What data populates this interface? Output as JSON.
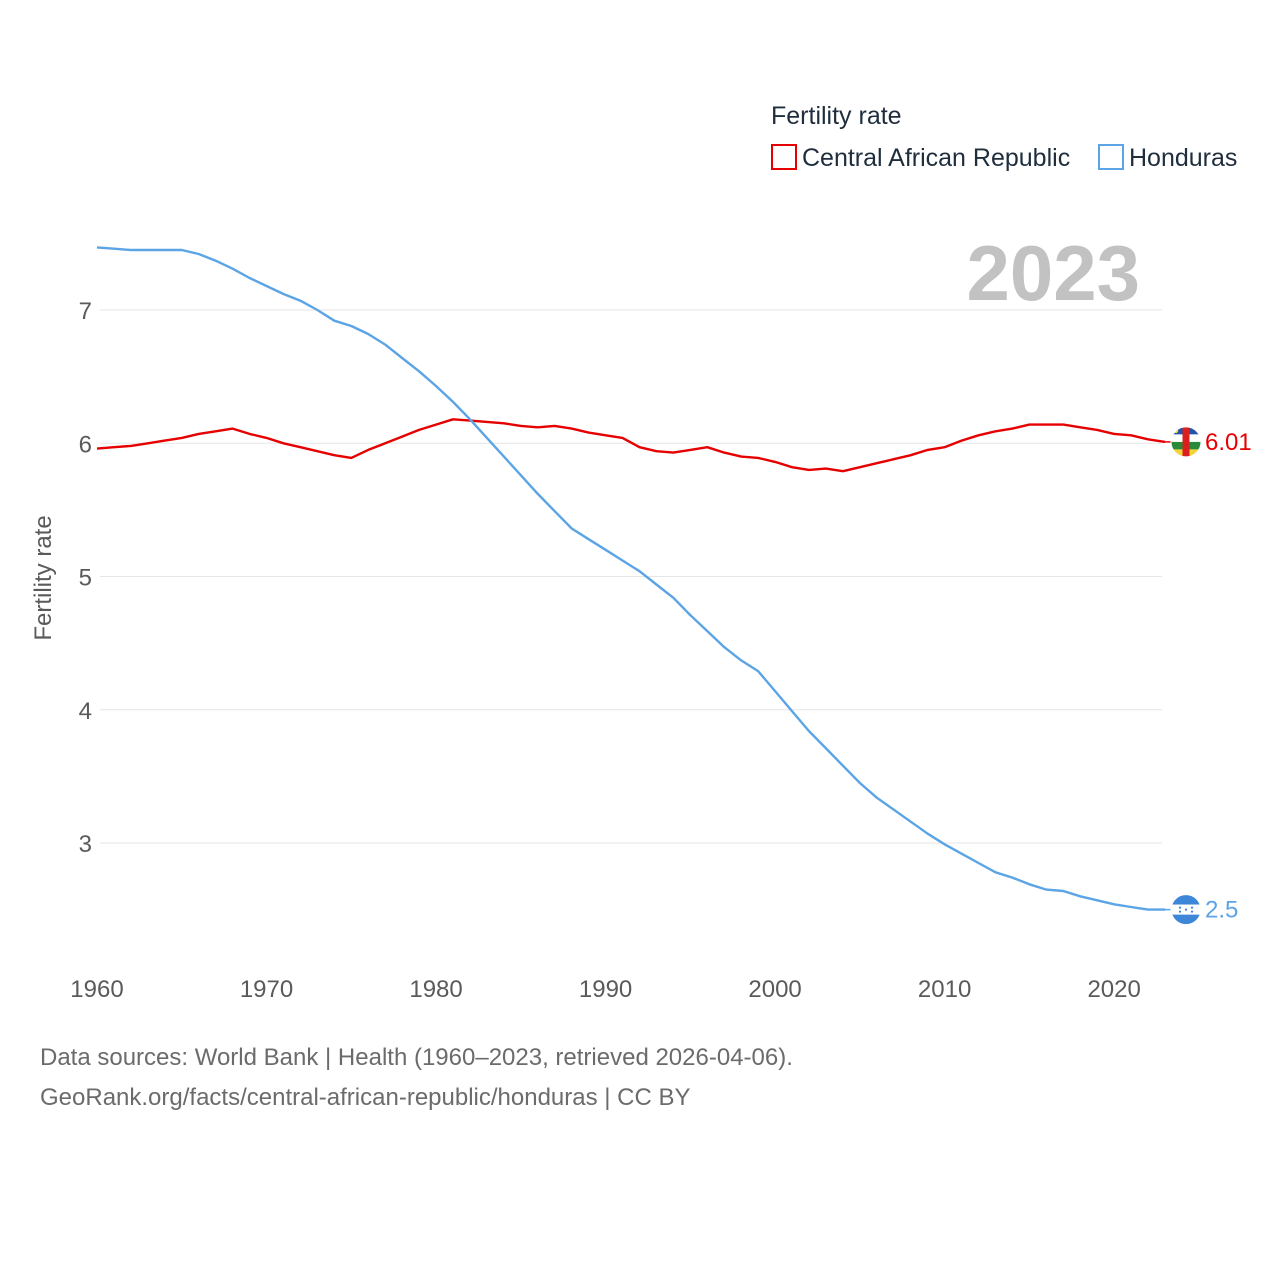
{
  "chart_data": {
    "type": "line",
    "title": "Fertility rate",
    "ylabel": "Fertility rate",
    "xlabel": "",
    "xlim": [
      1960,
      2023
    ],
    "ylim": [
      2.1,
      7.6
    ],
    "yticks": [
      3,
      4,
      5,
      6,
      7
    ],
    "xticks": [
      1960,
      1970,
      1980,
      1990,
      2000,
      2010,
      2020
    ],
    "year_label": "2023",
    "grid": true,
    "legend_position": "top-right",
    "x": [
      1960,
      1961,
      1962,
      1963,
      1964,
      1965,
      1966,
      1967,
      1968,
      1969,
      1970,
      1971,
      1972,
      1973,
      1974,
      1975,
      1976,
      1977,
      1978,
      1979,
      1980,
      1981,
      1982,
      1983,
      1984,
      1985,
      1986,
      1987,
      1988,
      1989,
      1990,
      1991,
      1992,
      1993,
      1994,
      1995,
      1996,
      1997,
      1998,
      1999,
      2000,
      2001,
      2002,
      2003,
      2004,
      2005,
      2006,
      2007,
      2008,
      2009,
      2010,
      2011,
      2012,
      2013,
      2014,
      2015,
      2016,
      2017,
      2018,
      2019,
      2020,
      2021,
      2022,
      2023
    ],
    "series": [
      {
        "name": "Central African Republic",
        "color": "#e60000",
        "end_label": "6.01",
        "flag": "central-african-republic-flag",
        "values": [
          5.96,
          5.97,
          5.98,
          6.0,
          6.02,
          6.04,
          6.07,
          6.09,
          6.11,
          6.07,
          6.04,
          6.0,
          5.97,
          5.94,
          5.91,
          5.89,
          5.95,
          6.0,
          6.05,
          6.1,
          6.14,
          6.18,
          6.17,
          6.16,
          6.15,
          6.13,
          6.12,
          6.13,
          6.11,
          6.08,
          6.06,
          6.04,
          5.97,
          5.94,
          5.93,
          5.95,
          5.97,
          5.93,
          5.9,
          5.89,
          5.86,
          5.82,
          5.8,
          5.81,
          5.79,
          5.82,
          5.85,
          5.88,
          5.91,
          5.95,
          5.97,
          6.02,
          6.06,
          6.09,
          6.11,
          6.14,
          6.14,
          6.14,
          6.12,
          6.1,
          6.07,
          6.06,
          6.03,
          6.01
        ]
      },
      {
        "name": "Honduras",
        "color": "#5ba4e6",
        "end_label": "2.5",
        "flag": "honduras-flag",
        "values": [
          7.47,
          7.46,
          7.45,
          7.45,
          7.45,
          7.45,
          7.42,
          7.37,
          7.31,
          7.24,
          7.18,
          7.12,
          7.07,
          7.0,
          6.92,
          6.88,
          6.82,
          6.74,
          6.64,
          6.54,
          6.43,
          6.31,
          6.18,
          6.04,
          5.9,
          5.76,
          5.62,
          5.49,
          5.36,
          5.28,
          5.2,
          5.12,
          5.04,
          4.94,
          4.84,
          4.71,
          4.59,
          4.47,
          4.37,
          4.29,
          4.14,
          3.99,
          3.84,
          3.71,
          3.58,
          3.45,
          3.34,
          3.25,
          3.16,
          3.07,
          2.99,
          2.92,
          2.85,
          2.78,
          2.74,
          2.69,
          2.65,
          2.64,
          2.6,
          2.57,
          2.54,
          2.52,
          2.5,
          2.5
        ]
      }
    ]
  },
  "footer": {
    "line1": "Data sources: World Bank | Health (1960–2023, retrieved 2026-04-06).",
    "line2": "GeoRank.org/facts/central-african-republic/honduras | CC BY"
  }
}
